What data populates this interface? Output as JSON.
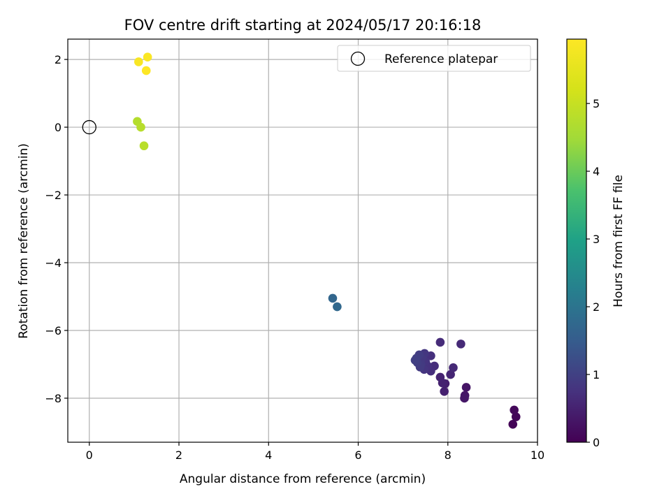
{
  "chart_data": {
    "type": "scatter",
    "title": "FOV centre drift starting at 2024/05/17 20:16:18",
    "xlabel": "Angular distance from reference (arcmin)",
    "ylabel": "Rotation from reference (arcmin)",
    "xlim": [
      -0.48,
      10.0
    ],
    "ylim": [
      -9.3,
      2.6
    ],
    "xticks": [
      0,
      2,
      4,
      6,
      8,
      10
    ],
    "yticks": [
      2,
      0,
      -2,
      -4,
      -6,
      -8
    ],
    "xtick_labels": [
      "0",
      "2",
      "4",
      "6",
      "8",
      "10"
    ],
    "ytick_labels": [
      "2",
      "0",
      "−2",
      "−4",
      "−6",
      "−8"
    ],
    "grid": true,
    "legend": {
      "position": "top-right",
      "label": "Reference platepar"
    },
    "reference_point": {
      "x": 0,
      "y": 0
    },
    "colorbar": {
      "label": "Hours from first FF file",
      "colormap": "viridis",
      "range": [
        0,
        5.95
      ],
      "ticks": [
        0,
        1,
        2,
        3,
        4,
        5
      ],
      "tick_labels": [
        "0",
        "1",
        "2",
        "3",
        "4",
        "5"
      ]
    },
    "points": [
      {
        "x": 9.45,
        "y": -8.77,
        "t": 0.05
      },
      {
        "x": 9.52,
        "y": -8.55,
        "t": 0.08
      },
      {
        "x": 9.48,
        "y": -8.35,
        "t": 0.1
      },
      {
        "x": 8.41,
        "y": -7.68,
        "t": 0.3
      },
      {
        "x": 8.38,
        "y": -7.92,
        "t": 0.32
      },
      {
        "x": 8.37,
        "y": -8.0,
        "t": 0.34
      },
      {
        "x": 7.94,
        "y": -7.57,
        "t": 0.45
      },
      {
        "x": 7.92,
        "y": -7.8,
        "t": 0.47
      },
      {
        "x": 7.88,
        "y": -7.55,
        "t": 0.5
      },
      {
        "x": 7.83,
        "y": -7.38,
        "t": 0.52
      },
      {
        "x": 8.06,
        "y": -7.3,
        "t": 0.55
      },
      {
        "x": 8.12,
        "y": -7.1,
        "t": 0.6
      },
      {
        "x": 8.29,
        "y": -6.4,
        "t": 0.62
      },
      {
        "x": 7.83,
        "y": -6.35,
        "t": 0.65
      },
      {
        "x": 7.7,
        "y": -7.05,
        "t": 0.68
      },
      {
        "x": 7.62,
        "y": -7.2,
        "t": 0.7
      },
      {
        "x": 7.62,
        "y": -6.75,
        "t": 0.72
      },
      {
        "x": 7.55,
        "y": -7.05,
        "t": 0.75
      },
      {
        "x": 7.5,
        "y": -6.92,
        "t": 0.78
      },
      {
        "x": 7.47,
        "y": -7.15,
        "t": 0.8
      },
      {
        "x": 7.48,
        "y": -6.68,
        "t": 0.82
      },
      {
        "x": 7.42,
        "y": -6.82,
        "t": 0.85
      },
      {
        "x": 7.4,
        "y": -7.0,
        "t": 0.88
      },
      {
        "x": 7.38,
        "y": -7.08,
        "t": 0.9
      },
      {
        "x": 7.36,
        "y": -6.72,
        "t": 0.92
      },
      {
        "x": 7.32,
        "y": -6.95,
        "t": 0.94
      },
      {
        "x": 7.3,
        "y": -6.82,
        "t": 0.96
      },
      {
        "x": 7.27,
        "y": -6.88,
        "t": 0.98
      },
      {
        "x": 5.43,
        "y": -5.05,
        "t": 1.7
      },
      {
        "x": 5.53,
        "y": -5.3,
        "t": 1.75
      },
      {
        "x": 1.07,
        "y": 0.17,
        "t": 4.75
      },
      {
        "x": 1.15,
        "y": 0.0,
        "t": 4.78
      },
      {
        "x": 1.22,
        "y": -0.55,
        "t": 4.8
      },
      {
        "x": 1.1,
        "y": 1.93,
        "t": 5.85
      },
      {
        "x": 1.3,
        "y": 2.07,
        "t": 5.9
      },
      {
        "x": 1.27,
        "y": 1.67,
        "t": 5.95
      }
    ]
  }
}
